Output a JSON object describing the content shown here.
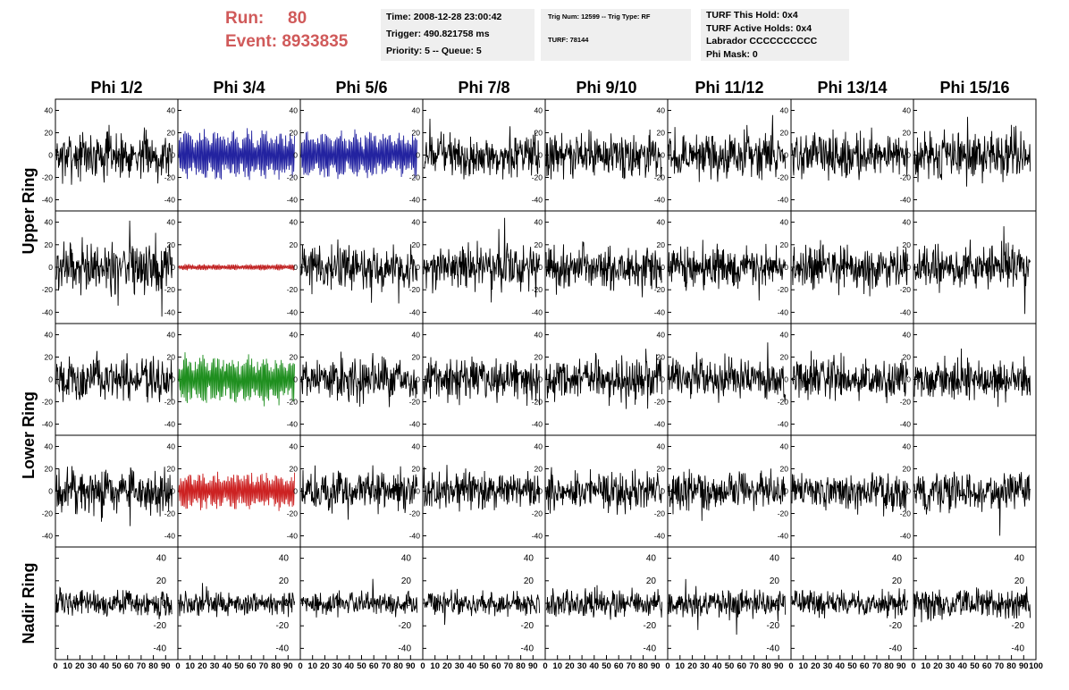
{
  "header": {
    "run_label": "Run:",
    "run_value": "80",
    "event_label": "Event:",
    "event_value": "8933835"
  },
  "info_time": {
    "line1": "Time: 2008-12-28 23:00:42",
    "line2": "Trigger: 490.821758 ms",
    "line3": "Priority: 5 -- Queue: 5"
  },
  "info_trig": {
    "line1": "Trig Num: 12599 -- Trig Type: RF",
    "line2": "TURF: 78144"
  },
  "info_turf": {
    "line1": "TURF This Hold: 0x4",
    "line2": "TURF Active Holds: 0x4",
    "line3": "Labrador CCCCCCCCCC",
    "line4": "Phi Mask: 0"
  },
  "colors": {
    "trace_default": "#000000",
    "trace_blue": "#2323a0",
    "trace_red_small": "#c02020",
    "trace_green": "#1f8f1f",
    "trace_red": "#cc2222",
    "header_red": "#d05a5a",
    "info_bg": "#efefef"
  },
  "chart_data": {
    "type": "line",
    "column_titles": [
      "Phi 1/2",
      "Phi 3/4",
      "Phi 5/6",
      "Phi 7/8",
      "Phi 9/10",
      "Phi 11/12",
      "Phi 13/14",
      "Phi 15/16"
    ],
    "row_titles": [
      "Upper Ring",
      "Lower Ring",
      "Nadir Ring"
    ],
    "xlim": [
      0,
      100
    ],
    "ylim": [
      -50,
      50
    ],
    "x_ticks": [
      0,
      10,
      20,
      30,
      40,
      50,
      60,
      70,
      80,
      90,
      100
    ],
    "y_ticks": [
      -40,
      -20,
      0,
      20,
      40
    ],
    "x_tick_label_row": "0 10 20 30 40 50 60 70 80 90 100",
    "panels": [
      [
        {
          "amp": 16,
          "color": "trace_default"
        },
        {
          "amp": 20,
          "color": "trace_blue",
          "regular": true
        },
        {
          "amp": 19,
          "color": "trace_blue",
          "regular": true
        },
        {
          "amp": 15,
          "color": "trace_default"
        },
        {
          "amp": 15,
          "color": "trace_default"
        },
        {
          "amp": 15,
          "color": "trace_default"
        },
        {
          "amp": 15,
          "color": "trace_default"
        },
        {
          "amp": 17,
          "color": "trace_default"
        }
      ],
      [
        {
          "amp": 18,
          "color": "trace_default"
        },
        {
          "amp": 2.5,
          "color": "trace_red_small",
          "regular": true
        },
        {
          "amp": 15,
          "color": "trace_default"
        },
        {
          "amp": 15,
          "color": "trace_default"
        },
        {
          "amp": 15,
          "color": "trace_default"
        },
        {
          "amp": 14,
          "color": "trace_default"
        },
        {
          "amp": 15,
          "color": "trace_default"
        },
        {
          "amp": 15,
          "color": "trace_default"
        }
      ],
      [
        {
          "amp": 15,
          "color": "trace_default"
        },
        {
          "amp": 20,
          "color": "trace_green",
          "regular": true
        },
        {
          "amp": 15,
          "color": "trace_default"
        },
        {
          "amp": 14,
          "color": "trace_default"
        },
        {
          "amp": 14,
          "color": "trace_default"
        },
        {
          "amp": 14,
          "color": "trace_default"
        },
        {
          "amp": 15,
          "color": "trace_default"
        },
        {
          "amp": 14,
          "color": "trace_default"
        }
      ],
      [
        {
          "amp": 16,
          "color": "trace_default"
        },
        {
          "amp": 15,
          "color": "trace_red",
          "regular": true
        },
        {
          "amp": 15,
          "color": "trace_default"
        },
        {
          "amp": 13,
          "color": "trace_default"
        },
        {
          "amp": 13,
          "color": "trace_default"
        },
        {
          "amp": 13,
          "color": "trace_default"
        },
        {
          "amp": 13,
          "color": "trace_default"
        },
        {
          "amp": 14,
          "color": "trace_default"
        }
      ],
      [
        {
          "amp": 9,
          "color": "trace_default"
        },
        {
          "amp": 8,
          "color": "trace_default"
        },
        {
          "amp": 8,
          "color": "trace_default"
        },
        {
          "amp": 8,
          "color": "trace_default"
        },
        {
          "amp": 9,
          "color": "trace_default"
        },
        {
          "amp": 9,
          "color": "trace_default"
        },
        {
          "amp": 9,
          "color": "trace_default"
        },
        {
          "amp": 11,
          "color": "trace_default"
        }
      ]
    ]
  }
}
